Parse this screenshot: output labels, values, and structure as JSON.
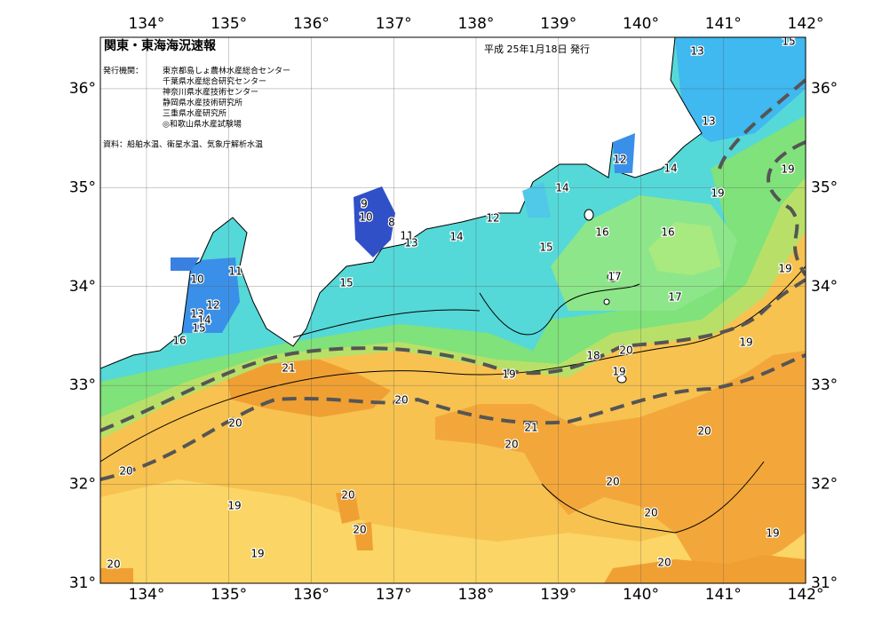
{
  "header": {
    "title": "関東・東海海況速報",
    "date": "平成 25年1月18日 発行",
    "publisher_label": "発行機関：",
    "publishers": [
      "東京都島しょ農林水産総合センター",
      "千葉県水産総合研究センター",
      "神奈川県水産技術センター",
      "静岡県水産技術研究所",
      "三重県水産研究所",
      "◎和歌山県水産試験場"
    ],
    "sources": "資料：船舶水温、衛星水温、気象庁解析水温"
  },
  "map": {
    "lon_range": [
      133.44,
      142
    ],
    "lat_range": [
      31,
      36.52
    ],
    "lon_ticks": [
      {
        "value": 134,
        "label": "134°"
      },
      {
        "value": 135,
        "label": "135°"
      },
      {
        "value": 136,
        "label": "136°"
      },
      {
        "value": 137,
        "label": "137°"
      },
      {
        "value": 138,
        "label": "138°"
      },
      {
        "value": 139,
        "label": "139°"
      },
      {
        "value": 140,
        "label": "140°"
      },
      {
        "value": 141,
        "label": "141°"
      },
      {
        "value": 142,
        "label": "142°"
      }
    ],
    "lat_ticks": [
      {
        "value": 31,
        "label": "31°"
      },
      {
        "value": 32,
        "label": "32°"
      },
      {
        "value": 33,
        "label": "33°"
      },
      {
        "value": 34,
        "label": "34°"
      },
      {
        "value": 35,
        "label": "35°"
      },
      {
        "value": 36,
        "label": "36°"
      }
    ],
    "contour_labels": [
      9,
      10,
      8,
      11,
      13,
      14,
      12,
      15,
      16,
      16,
      17,
      17,
      15,
      11,
      10,
      12,
      13,
      14,
      15,
      16,
      13,
      15,
      13,
      12,
      14,
      14,
      19,
      19,
      19,
      19,
      20,
      18,
      19,
      19,
      21,
      20,
      20,
      21,
      20,
      20,
      20,
      20,
      20,
      19,
      20,
      20,
      19,
      19,
      20,
      20
    ]
  }
}
